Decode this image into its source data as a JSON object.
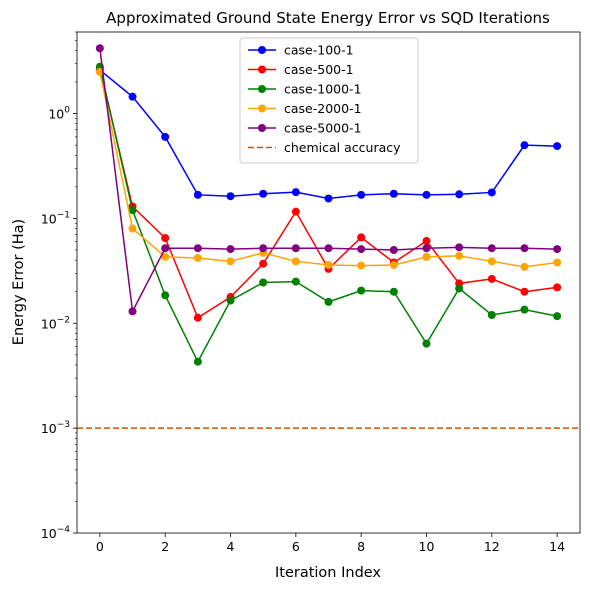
{
  "chart_data": {
    "type": "line",
    "title": "Approximated Ground State Energy Error vs SQD Iterations",
    "xlabel": "Iteration Index",
    "ylabel": "Energy Error (Ha)",
    "xlim": [
      -0.7,
      14.7
    ],
    "ylim": [
      0.0001,
      6
    ],
    "yscale": "log",
    "x_ticks": [
      0,
      2,
      4,
      6,
      8,
      10,
      12,
      14
    ],
    "y_ticks": [
      {
        "value": 0.0001,
        "base": "10",
        "exp": "−4"
      },
      {
        "value": 0.001,
        "base": "10",
        "exp": "−3"
      },
      {
        "value": 0.01,
        "base": "10",
        "exp": "−2"
      },
      {
        "value": 0.1,
        "base": "10",
        "exp": "−1"
      },
      {
        "value": 1,
        "base": "10",
        "exp": "0"
      }
    ],
    "legend_position": "upper-center",
    "x": [
      0,
      1,
      2,
      3,
      4,
      5,
      6,
      7,
      8,
      9,
      10,
      11,
      12,
      13,
      14
    ],
    "series": [
      {
        "name": "case-100-1",
        "color": "#0000ff",
        "values": [
          2.6,
          1.45,
          0.6,
          0.168,
          0.163,
          0.172,
          0.178,
          0.155,
          0.168,
          0.172,
          0.168,
          0.17,
          0.177,
          0.5,
          0.49
        ]
      },
      {
        "name": "case-500-1",
        "color": "#ff0000",
        "values": [
          2.7,
          0.13,
          0.065,
          0.0113,
          0.0178,
          0.037,
          0.116,
          0.033,
          0.066,
          0.038,
          0.061,
          0.024,
          0.0265,
          0.02,
          0.022
        ]
      },
      {
        "name": "case-1000-1",
        "color": "#008000",
        "values": [
          2.8,
          0.12,
          0.0185,
          0.0043,
          0.0165,
          0.0245,
          0.025,
          0.016,
          0.0205,
          0.02,
          0.0064,
          0.0215,
          0.012,
          0.0135,
          0.0117
        ]
      },
      {
        "name": "case-2000-1",
        "color": "#ffa500",
        "values": [
          2.5,
          0.08,
          0.043,
          0.042,
          0.039,
          0.047,
          0.039,
          0.036,
          0.0355,
          0.036,
          0.043,
          0.044,
          0.039,
          0.0345,
          0.038
        ]
      },
      {
        "name": "case-5000-1",
        "color": "#800080",
        "values": [
          4.2,
          0.013,
          0.052,
          0.052,
          0.051,
          0.052,
          0.052,
          0.052,
          0.051,
          0.05,
          0.052,
          0.053,
          0.052,
          0.052,
          0.051
        ]
      }
    ],
    "reference_lines": [
      {
        "name": "chemical accuracy",
        "value": 0.001,
        "color": "#cc5500",
        "style": "dashed"
      }
    ]
  }
}
